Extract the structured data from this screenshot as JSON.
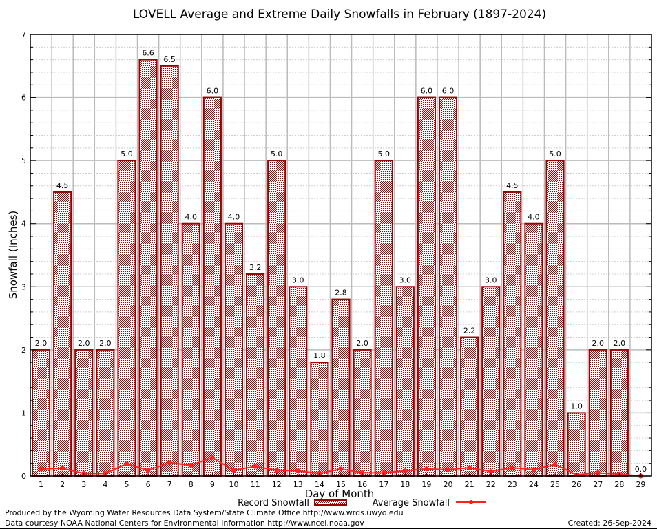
{
  "chart_data": {
    "type": "bar",
    "title": "LOVELL Average and Extreme Daily Snowfalls in February (1897-2024)",
    "xlabel": "Day of Month",
    "ylabel": "Snowfall (Inches)",
    "ylim": [
      0,
      7
    ],
    "yticks": [
      0,
      1,
      2,
      3,
      4,
      5,
      6,
      7
    ],
    "grid": true,
    "legend_position": "bottom-center",
    "categories": [
      "1",
      "2",
      "3",
      "4",
      "5",
      "6",
      "7",
      "8",
      "9",
      "10",
      "11",
      "12",
      "13",
      "14",
      "15",
      "16",
      "17",
      "18",
      "19",
      "20",
      "21",
      "22",
      "23",
      "24",
      "25",
      "26",
      "27",
      "28",
      "29"
    ],
    "series": [
      {
        "name": "Record Snowfall",
        "type": "bar",
        "color": "#990000",
        "values": [
          2.0,
          4.5,
          2.0,
          2.0,
          5.0,
          6.6,
          6.5,
          4.0,
          6.0,
          4.0,
          3.2,
          5.0,
          3.0,
          1.8,
          2.8,
          2.0,
          5.0,
          3.0,
          6.0,
          6.0,
          2.2,
          3.0,
          4.5,
          4.0,
          5.0,
          1.0,
          2.0,
          2.0,
          0.0
        ],
        "labels": [
          "2.0",
          "4.5",
          "2.0",
          "2.0",
          "5.0",
          "6.6",
          "6.5",
          "4.0",
          "6.0",
          "4.0",
          "3.2",
          "5.0",
          "3.0",
          "1.8",
          "2.8",
          "2.0",
          "5.0",
          "3.0",
          "6.0",
          "6.0",
          "2.2",
          "3.0",
          "4.5",
          "4.0",
          "5.0",
          "1.0",
          "2.0",
          "2.0",
          "0.0"
        ]
      },
      {
        "name": "Average Snowfall",
        "type": "line",
        "color": "#ff2020",
        "values": [
          0.11,
          0.12,
          0.04,
          0.04,
          0.19,
          0.09,
          0.21,
          0.17,
          0.29,
          0.09,
          0.15,
          0.09,
          0.08,
          0.04,
          0.11,
          0.05,
          0.05,
          0.08,
          0.11,
          0.1,
          0.13,
          0.07,
          0.13,
          0.1,
          0.18,
          0.02,
          0.05,
          0.03,
          0.0
        ]
      }
    ]
  },
  "footer": {
    "line1": "Produced by the Wyoming Water Resources Data System/State Climate Office http://www.wrds.uwyo.edu",
    "line2": "Data courtesy NOAA National Centers for Environmental Information http://www.ncei.noaa.gov",
    "created": "Created:  26-Sep-2024"
  }
}
